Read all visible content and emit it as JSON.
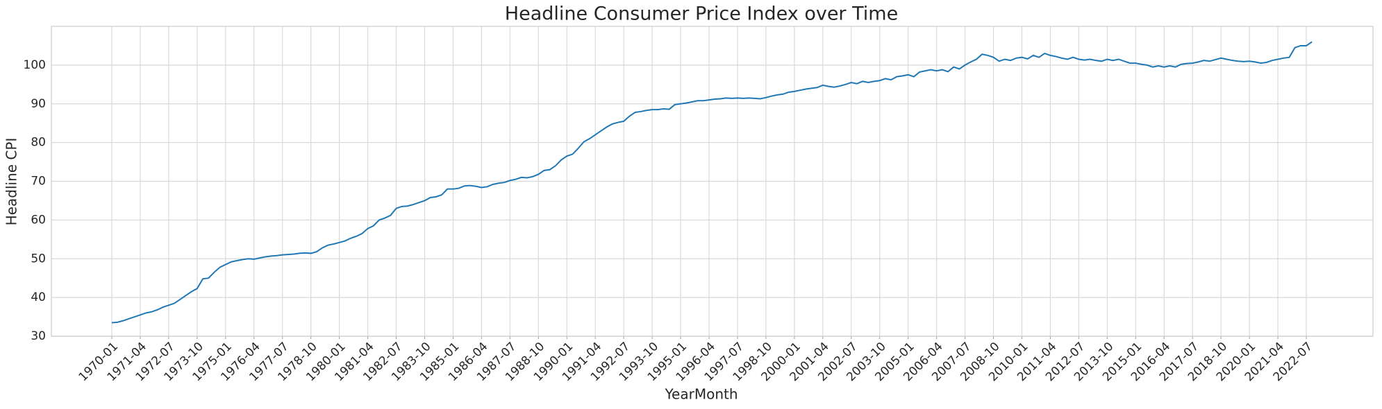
{
  "chart_data": {
    "type": "line",
    "title": "Headline Consumer Price Index over Time",
    "x_label": "YearMonth",
    "y_label": "Headline CPI",
    "color": "#1f77b4",
    "grid": true,
    "categories": [
      "1970-01",
      null,
      null,
      null,
      null,
      "1971-04",
      null,
      null,
      null,
      null,
      "1972-07",
      null,
      null,
      null,
      null,
      "1973-10",
      null,
      null,
      null,
      null,
      "1975-01",
      null,
      null,
      null,
      null,
      "1976-04",
      null,
      null,
      null,
      null,
      "1977-07",
      null,
      null,
      null,
      null,
      "1978-10",
      null,
      null,
      null,
      null,
      "1980-01",
      null,
      null,
      null,
      null,
      "1981-04",
      null,
      null,
      null,
      null,
      "1982-07",
      null,
      null,
      null,
      null,
      "1983-10",
      null,
      null,
      null,
      null,
      "1985-01",
      null,
      null,
      null,
      null,
      "1986-04",
      null,
      null,
      null,
      null,
      "1987-07",
      null,
      null,
      null,
      null,
      "1988-10",
      null,
      null,
      null,
      null,
      "1990-01",
      null,
      null,
      null,
      null,
      "1991-04",
      null,
      null,
      null,
      null,
      "1992-07",
      null,
      null,
      null,
      null,
      "1993-10",
      null,
      null,
      null,
      null,
      "1995-01",
      null,
      null,
      null,
      null,
      "1996-04",
      null,
      null,
      null,
      null,
      "1997-07",
      null,
      null,
      null,
      null,
      "1998-10",
      null,
      null,
      null,
      null,
      "2000-01",
      null,
      null,
      null,
      null,
      "2001-04",
      null,
      null,
      null,
      null,
      "2002-07",
      null,
      null,
      null,
      null,
      "2003-10",
      null,
      null,
      null,
      null,
      "2005-01",
      null,
      null,
      null,
      null,
      "2006-04",
      null,
      null,
      null,
      null,
      "2007-07",
      null,
      null,
      null,
      null,
      "2008-10",
      null,
      null,
      null,
      null,
      "2010-01",
      null,
      null,
      null,
      null,
      "2011-04",
      null,
      null,
      null,
      null,
      "2012-07",
      null,
      null,
      null,
      null,
      "2013-10",
      null,
      null,
      null,
      null,
      "2015-01",
      null,
      null,
      null,
      null,
      "2016-04",
      null,
      null,
      null,
      null,
      "2017-07",
      null,
      null,
      null,
      null,
      "2018-10",
      null,
      null,
      null,
      null,
      "2020-01",
      null,
      null,
      null,
      null,
      "2021-04",
      null,
      null,
      null,
      null,
      "2022-07",
      null
    ],
    "values": [
      33.5,
      33.6,
      34.0,
      34.5,
      35.0,
      35.5,
      36.0,
      36.3,
      36.8,
      37.5,
      38.0,
      38.5,
      39.5,
      40.5,
      41.5,
      42.3,
      44.8,
      45.0,
      46.5,
      47.8,
      48.5,
      49.2,
      49.5,
      49.8,
      50.0,
      49.9,
      50.2,
      50.5,
      50.7,
      50.8,
      51.0,
      51.1,
      51.2,
      51.4,
      51.5,
      51.4,
      51.8,
      52.8,
      53.5,
      53.8,
      54.2,
      54.6,
      55.3,
      55.8,
      56.5,
      57.8,
      58.5,
      60.0,
      60.5,
      61.2,
      63.0,
      63.5,
      63.6,
      64.0,
      64.5,
      65.0,
      65.8,
      66.0,
      66.5,
      68.0,
      68.0,
      68.2,
      68.8,
      68.9,
      68.7,
      68.4,
      68.6,
      69.2,
      69.5,
      69.7,
      70.2,
      70.5,
      71.0,
      70.9,
      71.2,
      71.8,
      72.8,
      73.0,
      74.0,
      75.5,
      76.5,
      77.0,
      78.5,
      80.2,
      81.0,
      82.0,
      83.0,
      84.0,
      84.8,
      85.2,
      85.5,
      86.8,
      87.8,
      88.0,
      88.3,
      88.5,
      88.5,
      88.7,
      88.6,
      89.8,
      90.0,
      90.2,
      90.5,
      90.8,
      90.8,
      91.0,
      91.2,
      91.3,
      91.5,
      91.4,
      91.5,
      91.4,
      91.5,
      91.4,
      91.3,
      91.6,
      92.0,
      92.3,
      92.5,
      93.0,
      93.2,
      93.5,
      93.8,
      94.0,
      94.2,
      94.8,
      94.5,
      94.3,
      94.6,
      95.0,
      95.5,
      95.2,
      95.8,
      95.5,
      95.8,
      96.0,
      96.5,
      96.2,
      97.0,
      97.2,
      97.5,
      97.0,
      98.2,
      98.5,
      98.8,
      98.5,
      98.8,
      98.3,
      99.5,
      99.0,
      100.0,
      100.8,
      101.5,
      102.8,
      102.5,
      102.0,
      101.0,
      101.5,
      101.2,
      101.8,
      102.0,
      101.6,
      102.5,
      102.0,
      103.0,
      102.5,
      102.2,
      101.8,
      101.5,
      102.0,
      101.5,
      101.3,
      101.5,
      101.2,
      101.0,
      101.5,
      101.2,
      101.5,
      101.0,
      100.5,
      100.5,
      100.2,
      100.0,
      99.5,
      99.8,
      99.5,
      99.8,
      99.5,
      100.2,
      100.4,
      100.5,
      100.8,
      101.2,
      101.0,
      101.4,
      101.8,
      101.5,
      101.2,
      101.0,
      100.9,
      101.0,
      100.8,
      100.5,
      100.7,
      101.2,
      101.5,
      101.8,
      102.0,
      104.5,
      105.0,
      105.0,
      106.0
    ],
    "ylim": [
      30,
      110
    ],
    "yticks": [
      30,
      40,
      50,
      60,
      70,
      80,
      90,
      100
    ]
  }
}
